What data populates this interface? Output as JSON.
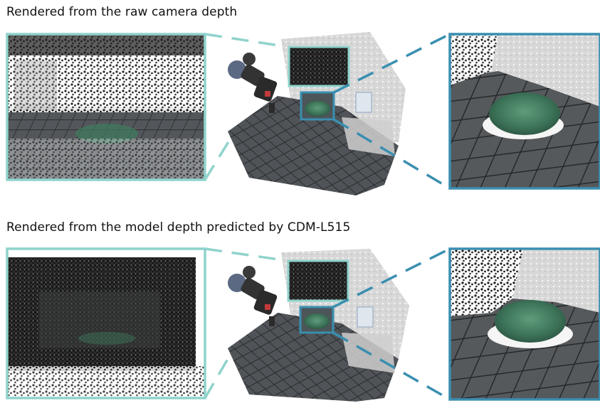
{
  "figure": {
    "rows": [
      {
        "title": "Rendered from the raw camera depth"
      },
      {
        "title": "Rendered from the model depth predicted by CDM-L515"
      }
    ]
  },
  "colors": {
    "teal_frame": "#8fd3cc",
    "blue_frame": "#3a8fb0",
    "floor": "#3e4245",
    "wall": "#e6e6e6",
    "bowl": "#3f7a5e"
  }
}
